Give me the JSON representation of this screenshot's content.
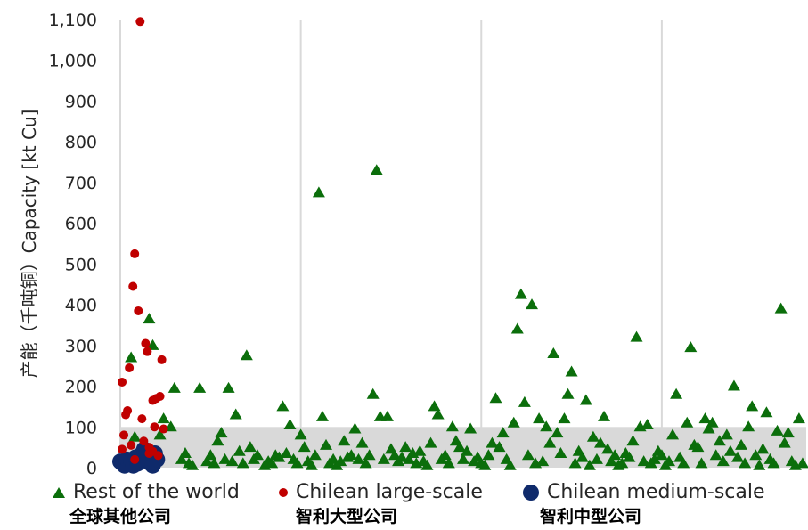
{
  "chart_data": {
    "type": "scatter",
    "ylabel": "产能（千吨铜）Capacity [kt Cu]",
    "ylim": [
      0,
      1100
    ],
    "yticks": [
      "0",
      "100",
      "200",
      "300",
      "400",
      "500",
      "600",
      "700",
      "800",
      "900",
      "1,000",
      "1,100"
    ],
    "xlim": [
      0,
      190
    ],
    "x_vertical_gridlines": [
      0,
      50,
      100,
      150
    ],
    "shaded_band_y": [
      0,
      100
    ],
    "colors": {
      "rest": "#0b6e0b",
      "chilean_large": "#c00000",
      "chilean_medium": "#0f2a6b",
      "band": "#d9d9d9",
      "grid": "#d9d9d9"
    },
    "legend_position": "bottom",
    "series": [
      {
        "name": "Rest of the world",
        "name_cn": "全球其他公司",
        "marker": "triangle",
        "points": [
          [
            1,
            10
          ],
          [
            2,
            5
          ],
          [
            3,
            270
          ],
          [
            4,
            75
          ],
          [
            5,
            30
          ],
          [
            8,
            365
          ],
          [
            9,
            300
          ],
          [
            10,
            20
          ],
          [
            11,
            80
          ],
          [
            12,
            120
          ],
          [
            14,
            100
          ],
          [
            15,
            195
          ],
          [
            17,
            20
          ],
          [
            18,
            35
          ],
          [
            19,
            10
          ],
          [
            20,
            5
          ],
          [
            22,
            195
          ],
          [
            24,
            15
          ],
          [
            25,
            30
          ],
          [
            26,
            10
          ],
          [
            27,
            65
          ],
          [
            28,
            85
          ],
          [
            29,
            20
          ],
          [
            30,
            195
          ],
          [
            31,
            15
          ],
          [
            32,
            130
          ],
          [
            33,
            40
          ],
          [
            34,
            10
          ],
          [
            35,
            275
          ],
          [
            36,
            50
          ],
          [
            37,
            20
          ],
          [
            38,
            30
          ],
          [
            40,
            5
          ],
          [
            41,
            15
          ],
          [
            42,
            10
          ],
          [
            43,
            30
          ],
          [
            44,
            25
          ],
          [
            45,
            150
          ],
          [
            46,
            35
          ],
          [
            47,
            105
          ],
          [
            48,
            20
          ],
          [
            49,
            10
          ],
          [
            50,
            80
          ],
          [
            51,
            50
          ],
          [
            52,
            15
          ],
          [
            53,
            5
          ],
          [
            54,
            30
          ],
          [
            55,
            675
          ],
          [
            56,
            125
          ],
          [
            57,
            55
          ],
          [
            58,
            10
          ],
          [
            59,
            20
          ],
          [
            60,
            5
          ],
          [
            61,
            15
          ],
          [
            62,
            65
          ],
          [
            63,
            25
          ],
          [
            64,
            30
          ],
          [
            65,
            95
          ],
          [
            66,
            20
          ],
          [
            67,
            60
          ],
          [
            68,
            10
          ],
          [
            69,
            30
          ],
          [
            70,
            180
          ],
          [
            71,
            730
          ],
          [
            72,
            125
          ],
          [
            73,
            20
          ],
          [
            74,
            125
          ],
          [
            75,
            45
          ],
          [
            76,
            30
          ],
          [
            77,
            15
          ],
          [
            78,
            25
          ],
          [
            79,
            50
          ],
          [
            80,
            20
          ],
          [
            81,
            35
          ],
          [
            82,
            10
          ],
          [
            83,
            40
          ],
          [
            84,
            15
          ],
          [
            85,
            5
          ],
          [
            86,
            60
          ],
          [
            87,
            150
          ],
          [
            88,
            130
          ],
          [
            89,
            20
          ],
          [
            90,
            30
          ],
          [
            91,
            10
          ],
          [
            92,
            100
          ],
          [
            93,
            65
          ],
          [
            94,
            50
          ],
          [
            95,
            20
          ],
          [
            96,
            40
          ],
          [
            97,
            95
          ],
          [
            98,
            15
          ],
          [
            99,
            25
          ],
          [
            100,
            10
          ],
          [
            101,
            5
          ],
          [
            102,
            30
          ],
          [
            103,
            60
          ],
          [
            104,
            170
          ],
          [
            105,
            50
          ],
          [
            106,
            85
          ],
          [
            107,
            20
          ],
          [
            108,
            5
          ],
          [
            109,
            110
          ],
          [
            110,
            340
          ],
          [
            111,
            425
          ],
          [
            112,
            160
          ],
          [
            113,
            30
          ],
          [
            114,
            400
          ],
          [
            115,
            10
          ],
          [
            116,
            120
          ],
          [
            117,
            15
          ],
          [
            118,
            100
          ],
          [
            119,
            60
          ],
          [
            120,
            280
          ],
          [
            121,
            85
          ],
          [
            122,
            35
          ],
          [
            123,
            120
          ],
          [
            124,
            180
          ],
          [
            125,
            235
          ],
          [
            126,
            10
          ],
          [
            127,
            40
          ],
          [
            128,
            25
          ],
          [
            129,
            165
          ],
          [
            130,
            5
          ],
          [
            131,
            75
          ],
          [
            132,
            20
          ],
          [
            133,
            60
          ],
          [
            134,
            125
          ],
          [
            135,
            45
          ],
          [
            136,
            15
          ],
          [
            137,
            30
          ],
          [
            138,
            5
          ],
          [
            139,
            10
          ],
          [
            140,
            35
          ],
          [
            141,
            25
          ],
          [
            142,
            65
          ],
          [
            143,
            320
          ],
          [
            144,
            100
          ],
          [
            145,
            15
          ],
          [
            146,
            105
          ],
          [
            147,
            10
          ],
          [
            148,
            20
          ],
          [
            149,
            40
          ],
          [
            150,
            30
          ],
          [
            151,
            5
          ],
          [
            152,
            15
          ],
          [
            153,
            80
          ],
          [
            154,
            180
          ],
          [
            155,
            25
          ],
          [
            156,
            10
          ],
          [
            157,
            110
          ],
          [
            158,
            295
          ],
          [
            159,
            55
          ],
          [
            160,
            50
          ],
          [
            161,
            10
          ],
          [
            162,
            120
          ],
          [
            163,
            95
          ],
          [
            164,
            110
          ],
          [
            165,
            30
          ],
          [
            166,
            65
          ],
          [
            167,
            15
          ],
          [
            168,
            80
          ],
          [
            169,
            40
          ],
          [
            170,
            200
          ],
          [
            171,
            25
          ],
          [
            172,
            55
          ],
          [
            173,
            10
          ],
          [
            174,
            100
          ],
          [
            175,
            150
          ],
          [
            176,
            30
          ],
          [
            177,
            5
          ],
          [
            178,
            45
          ],
          [
            179,
            135
          ],
          [
            180,
            20
          ],
          [
            181,
            10
          ],
          [
            182,
            90
          ],
          [
            183,
            390
          ],
          [
            184,
            60
          ],
          [
            185,
            85
          ],
          [
            186,
            15
          ],
          [
            187,
            5
          ],
          [
            188,
            120
          ],
          [
            189,
            10
          ]
        ]
      },
      {
        "name": "Chilean large-scale",
        "name_cn": "智利大型公司",
        "marker": "circle",
        "points": [
          [
            0.5,
            210
          ],
          [
            0.5,
            45
          ],
          [
            1,
            80
          ],
          [
            1.5,
            130
          ],
          [
            2,
            140
          ],
          [
            2.5,
            245
          ],
          [
            3,
            55
          ],
          [
            3.5,
            445
          ],
          [
            4,
            525
          ],
          [
            4,
            20
          ],
          [
            5,
            385
          ],
          [
            5.5,
            1095
          ],
          [
            6,
            120
          ],
          [
            6.5,
            65
          ],
          [
            7,
            305
          ],
          [
            7.5,
            285
          ],
          [
            8,
            35
          ],
          [
            9,
            165
          ],
          [
            9.5,
            100
          ],
          [
            10,
            170
          ],
          [
            10.5,
            30
          ],
          [
            11,
            175
          ],
          [
            11.5,
            265
          ],
          [
            12,
            95
          ],
          [
            8,
            50
          ],
          [
            9,
            40
          ]
        ]
      },
      {
        "name": "Chilean medium-scale",
        "name_cn": "智利中型公司",
        "marker": "circle",
        "points": [
          [
            0,
            15
          ],
          [
            0.6,
            10
          ],
          [
            1.2,
            5
          ],
          [
            1.8,
            20
          ],
          [
            2.4,
            10
          ],
          [
            3,
            15
          ],
          [
            3.6,
            5
          ],
          [
            4.2,
            25
          ],
          [
            4.8,
            10
          ],
          [
            5.4,
            30
          ],
          [
            6,
            20
          ],
          [
            6.6,
            45
          ],
          [
            7.2,
            40
          ],
          [
            7.8,
            15
          ],
          [
            8.4,
            10
          ],
          [
            9,
            5
          ],
          [
            9.6,
            35
          ],
          [
            10.2,
            20
          ]
        ]
      }
    ]
  }
}
